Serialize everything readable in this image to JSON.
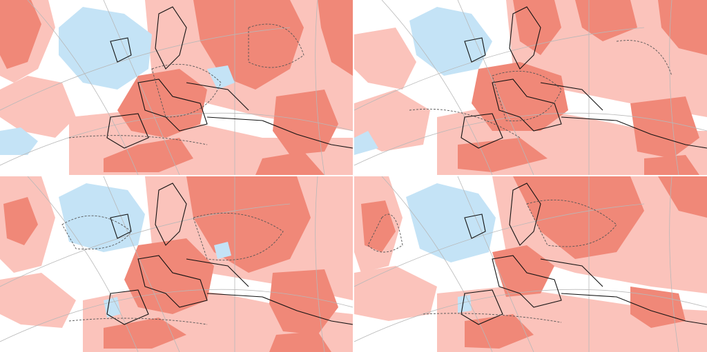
{
  "figure": {
    "type": "anomaly-map-grid",
    "rows": 2,
    "cols": 2,
    "panels": [
      {
        "id": "top-left"
      },
      {
        "id": "top-right"
      },
      {
        "id": "bottom-left"
      },
      {
        "id": "bottom-right"
      }
    ]
  },
  "colors": {
    "strong_positive": "#f08878",
    "weak_positive": "#fbc3bb",
    "negative": "#c4e3f6",
    "background": "#ffffff",
    "coastline": "#111111",
    "graticule": "#b8b8b8",
    "contour_dashed": "#555555"
  },
  "legend": []
}
